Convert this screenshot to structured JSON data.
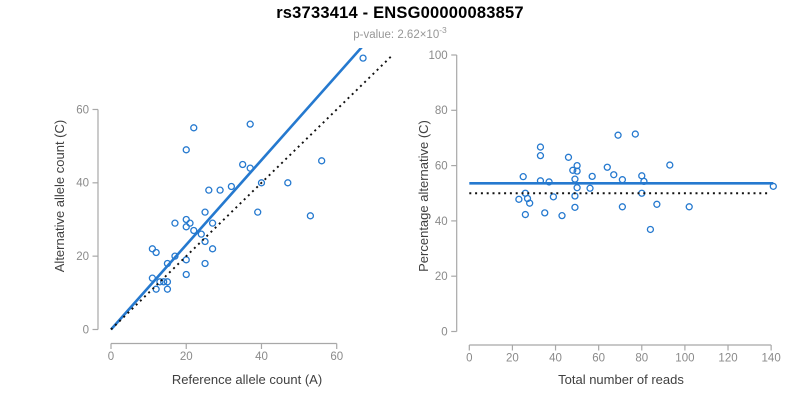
{
  "header": {
    "title": "rs3733414 - ENSG00000083857",
    "subtitle_label": "p-value: ",
    "subtitle_value": "2.62×10",
    "subtitle_exponent": "-3"
  },
  "colors": {
    "accent_blue": "#2579cf",
    "dotted_black": "#111111",
    "axis_line_gray": "#a8a8a8",
    "tick_label_gray": "#8a8a8a",
    "axis_title_gray": "#404040"
  },
  "chart_data": [
    {
      "type": "scatter",
      "name": "allele-counts-plot",
      "xlabel": "Reference allele count (A)",
      "ylabel": "Alternative allele count (C)",
      "x_ticks": [
        0,
        20,
        40,
        60
      ],
      "y_ticks": [
        0,
        20,
        40,
        60
      ],
      "xlim": [
        0,
        74
      ],
      "ylim": [
        0,
        76
      ],
      "grid": false,
      "legend": "none",
      "points": [
        [
          11,
          14
        ],
        [
          11,
          22
        ],
        [
          12,
          11
        ],
        [
          12,
          21
        ],
        [
          13,
          13
        ],
        [
          14,
          13
        ],
        [
          15,
          11
        ],
        [
          15,
          13
        ],
        [
          15,
          18
        ],
        [
          17,
          20
        ],
        [
          17,
          29
        ],
        [
          20,
          15
        ],
        [
          20,
          19
        ],
        [
          20,
          28
        ],
        [
          20,
          30
        ],
        [
          20,
          49
        ],
        [
          21,
          29
        ],
        [
          22,
          27
        ],
        [
          22,
          55
        ],
        [
          24,
          26
        ],
        [
          25,
          18
        ],
        [
          25,
          24
        ],
        [
          25,
          32
        ],
        [
          26,
          38
        ],
        [
          27,
          22
        ],
        [
          27,
          29
        ],
        [
          29,
          38
        ],
        [
          32,
          39
        ],
        [
          35,
          45
        ],
        [
          37,
          44
        ],
        [
          37,
          56
        ],
        [
          39,
          32
        ],
        [
          40,
          40
        ],
        [
          47,
          40
        ],
        [
          53,
          31
        ],
        [
          56,
          46
        ],
        [
          67,
          74
        ]
      ],
      "lines": [
        {
          "name": "fit-line",
          "style": "solid",
          "color_key": "accent_blue",
          "slope": 1.155,
          "intercept": 0
        },
        {
          "name": "identity-line",
          "style": "dotted",
          "color_key": "dotted_black",
          "slope": 1,
          "intercept": 0
        }
      ]
    },
    {
      "type": "scatter",
      "name": "percentage-reads-plot",
      "xlabel": "Total number of reads",
      "ylabel": "Percentage alternative (C)",
      "x_ticks": [
        0,
        20,
        40,
        60,
        80,
        100,
        120,
        140
      ],
      "y_ticks": [
        0,
        20,
        40,
        60,
        80,
        100
      ],
      "xlim": [
        0,
        145
      ],
      "ylim": [
        0,
        101
      ],
      "grid": false,
      "legend": "none",
      "points": [
        [
          25,
          56.0
        ],
        [
          33,
          66.7
        ],
        [
          23,
          47.8
        ],
        [
          33,
          63.6
        ],
        [
          26,
          50.0
        ],
        [
          27,
          48.1
        ],
        [
          26,
          42.3
        ],
        [
          28,
          46.4
        ],
        [
          33,
          54.5
        ],
        [
          37,
          54.1
        ],
        [
          46,
          63.0
        ],
        [
          35,
          42.9
        ],
        [
          39,
          48.7
        ],
        [
          48,
          58.3
        ],
        [
          50,
          60.0
        ],
        [
          69,
          71.0
        ],
        [
          50,
          58.0
        ],
        [
          49,
          55.1
        ],
        [
          77,
          71.4
        ],
        [
          50,
          52.0
        ],
        [
          43,
          41.9
        ],
        [
          49,
          49.0
        ],
        [
          57,
          56.1
        ],
        [
          64,
          59.4
        ],
        [
          49,
          44.9
        ],
        [
          56,
          51.8
        ],
        [
          67,
          56.7
        ],
        [
          71,
          54.9
        ],
        [
          80,
          56.3
        ],
        [
          81,
          54.3
        ],
        [
          93,
          60.2
        ],
        [
          71,
          45.1
        ],
        [
          80,
          50.0
        ],
        [
          87,
          46.0
        ],
        [
          84,
          36.9
        ],
        [
          102,
          45.1
        ],
        [
          141,
          52.5
        ]
      ],
      "lines": [
        {
          "name": "fit-line",
          "style": "solid",
          "color_key": "accent_blue",
          "y": 53.6,
          "x1": 0,
          "x2": 141
        },
        {
          "name": "null-line",
          "style": "dotted",
          "color_key": "dotted_black",
          "y": 50,
          "x1": 0,
          "x2": 139
        }
      ]
    }
  ]
}
